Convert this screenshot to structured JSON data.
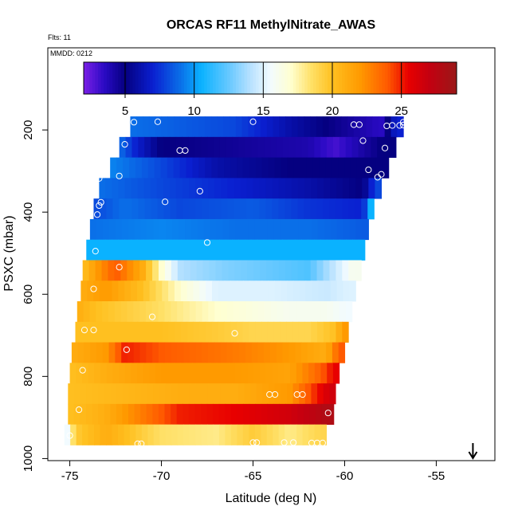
{
  "chart_data": {
    "type": "heatmap",
    "title": "ORCAS RF11 MethylNitrate_AWAS",
    "subtitle_left_1": "Flts: 11",
    "subtitle_left_2": "MMDD: 0212",
    "xlabel": "Latitude (deg N)",
    "ylabel": "PSXC (mbar)",
    "xlim": [
      -76.2,
      -51.8
    ],
    "ylim": [
      1005,
      0
    ],
    "xticks": [
      -75,
      -70,
      -65,
      -60,
      -55
    ],
    "yticks": [
      200,
      400,
      600,
      800,
      1000
    ],
    "colorbar": {
      "range": [
        2,
        29
      ],
      "ticks": [
        5,
        10,
        15,
        20,
        25
      ],
      "stops": [
        [
          2,
          "#7b1fe6"
        ],
        [
          3.5,
          "#2a0ac4"
        ],
        [
          5,
          "#050080"
        ],
        [
          7,
          "#0a1fd0"
        ],
        [
          9,
          "#0a6fe8"
        ],
        [
          10.5,
          "#0ab2ff"
        ],
        [
          12.5,
          "#66c8ff"
        ],
        [
          14,
          "#b4e0ff"
        ],
        [
          15.5,
          "#f2fbff"
        ],
        [
          17,
          "#ffffd0"
        ],
        [
          18.5,
          "#ffe066"
        ],
        [
          20,
          "#ffc020"
        ],
        [
          22,
          "#ff9a00"
        ],
        [
          24,
          "#ff5a00"
        ],
        [
          25.5,
          "#e80000"
        ],
        [
          27,
          "#c40010"
        ],
        [
          29,
          "#9a1818"
        ]
      ]
    },
    "arrow_lat": -53,
    "bands": [
      {
        "p": 192,
        "lat_min": -71.7,
        "lat_max": -56.8,
        "seg": [
          [
            -71.7,
            9
          ],
          [
            -66,
            8
          ],
          [
            -63,
            6
          ],
          [
            -61,
            5
          ],
          [
            -58,
            3.5
          ],
          [
            -57.2,
            7
          ]
        ]
      },
      {
        "p": 242,
        "lat_min": -72.3,
        "lat_max": -57.2,
        "seg": [
          [
            -72.3,
            9
          ],
          [
            -71.4,
            7
          ],
          [
            -70,
            5
          ],
          [
            -62,
            4
          ],
          [
            -60.5,
            3
          ],
          [
            -58,
            5
          ]
        ]
      },
      {
        "p": 292,
        "lat_min": -72.8,
        "lat_max": -57.6,
        "seg": [
          [
            -72.8,
            9.5
          ],
          [
            -70,
            8
          ],
          [
            -67,
            6
          ],
          [
            -63,
            5
          ],
          [
            -58.5,
            5
          ]
        ]
      },
      {
        "p": 342,
        "lat_min": -73.4,
        "lat_max": -58.0,
        "seg": [
          [
            -73.4,
            9
          ],
          [
            -70,
            8
          ],
          [
            -66,
            7
          ],
          [
            -62,
            6
          ],
          [
            -59,
            5
          ],
          [
            -58.3,
            8
          ]
        ]
      },
      {
        "p": 392,
        "lat_min": -73.7,
        "lat_max": -58.4,
        "seg": [
          [
            -73.7,
            8
          ],
          [
            -72,
            9
          ],
          [
            -69,
            8
          ],
          [
            -65,
            8.5
          ],
          [
            -62,
            7.5
          ],
          [
            -59,
            7
          ],
          [
            -58.6,
            10.5
          ]
        ]
      },
      {
        "p": 442,
        "lat_min": -73.9,
        "lat_max": -58.7,
        "seg": [
          [
            -73.9,
            9
          ],
          [
            -70,
            9.5
          ],
          [
            -66,
            9
          ],
          [
            -62,
            9
          ],
          [
            -59,
            8.5
          ]
        ]
      },
      {
        "p": 492,
        "lat_min": -74.1,
        "lat_max": -58.9,
        "seg": [
          [
            -74.1,
            10.5
          ],
          [
            -70,
            10.5
          ],
          [
            -66,
            10.5
          ],
          [
            -62,
            10.5
          ],
          [
            -59,
            10.5
          ]
        ]
      },
      {
        "p": 542,
        "lat_min": -74.3,
        "lat_max": -59.1,
        "seg": [
          [
            -74.3,
            20
          ],
          [
            -73.5,
            22
          ],
          [
            -72.5,
            24
          ],
          [
            -71,
            21
          ],
          [
            -70,
            17
          ],
          [
            -69,
            14
          ],
          [
            -66.5,
            13
          ],
          [
            -64,
            12.5
          ],
          [
            -62,
            12
          ],
          [
            -59.6,
            16
          ]
        ]
      },
      {
        "p": 592,
        "lat_min": -74.4,
        "lat_max": -59.4,
        "seg": [
          [
            -74.4,
            21
          ],
          [
            -73,
            22
          ],
          [
            -71,
            20
          ],
          [
            -69,
            17
          ],
          [
            -67,
            15
          ],
          [
            -64,
            15
          ],
          [
            -61,
            14.5
          ],
          [
            -59.8,
            15
          ]
        ]
      },
      {
        "p": 642,
        "lat_min": -74.6,
        "lat_max": -59.6,
        "seg": [
          [
            -74.6,
            21
          ],
          [
            -73.5,
            20
          ],
          [
            -71,
            19
          ],
          [
            -69,
            18
          ],
          [
            -67,
            17
          ],
          [
            -65,
            16.5
          ],
          [
            -63,
            16
          ],
          [
            -61,
            16
          ],
          [
            -59.9,
            15.5
          ]
        ]
      },
      {
        "p": 692,
        "lat_min": -74.7,
        "lat_max": -59.8,
        "seg": [
          [
            -74.7,
            20
          ],
          [
            -72,
            20
          ],
          [
            -70,
            20
          ],
          [
            -67,
            19.5
          ],
          [
            -65,
            19
          ],
          [
            -62,
            19
          ],
          [
            -60.5,
            20
          ],
          [
            -60.1,
            22
          ]
        ]
      },
      {
        "p": 742,
        "lat_min": -74.9,
        "lat_max": -60.0,
        "seg": [
          [
            -74.9,
            21
          ],
          [
            -73,
            22
          ],
          [
            -72,
            25
          ],
          [
            -70,
            24
          ],
          [
            -66,
            23
          ],
          [
            -63,
            22
          ],
          [
            -61,
            21
          ],
          [
            -60.3,
            24
          ]
        ]
      },
      {
        "p": 792,
        "lat_min": -75.0,
        "lat_max": -60.3,
        "seg": [
          [
            -75.0,
            20
          ],
          [
            -73,
            21
          ],
          [
            -70,
            22
          ],
          [
            -66,
            22
          ],
          [
            -63,
            21.5
          ],
          [
            -61.2,
            24
          ],
          [
            -60.6,
            25.5
          ]
        ]
      },
      {
        "p": 842,
        "lat_min": -75.1,
        "lat_max": -60.5,
        "seg": [
          [
            -75.1,
            20
          ],
          [
            -72,
            20.5
          ],
          [
            -69,
            21
          ],
          [
            -66,
            21
          ],
          [
            -63,
            22
          ],
          [
            -62,
            24
          ],
          [
            -61.3,
            25.5
          ],
          [
            -60.8,
            26.5
          ]
        ]
      },
      {
        "p": 892,
        "lat_min": -75.1,
        "lat_max": -60.6,
        "seg": [
          [
            -75.1,
            20
          ],
          [
            -73,
            21
          ],
          [
            -71,
            23
          ],
          [
            -69,
            25
          ],
          [
            -66,
            25.5
          ],
          [
            -63,
            26.5
          ],
          [
            -61.5,
            27.5
          ],
          [
            -61,
            28
          ]
        ]
      },
      {
        "p": 942,
        "lat_min": -75.3,
        "lat_max": -61.0,
        "seg": [
          [
            -75.3,
            14
          ],
          [
            -74.7,
            19.5
          ],
          [
            -73,
            21
          ],
          [
            -70,
            18.5
          ],
          [
            -67,
            18
          ],
          [
            -65,
            19.5
          ],
          [
            -63,
            18
          ],
          [
            -61.4,
            19
          ]
        ]
      }
    ],
    "points": [
      [
        -71.5,
        181
      ],
      [
        -70.2,
        180
      ],
      [
        -65.0,
        180
      ],
      [
        -59.5,
        187
      ],
      [
        -59.2,
        187
      ],
      [
        -57.7,
        190
      ],
      [
        -57.4,
        189
      ],
      [
        -57.0,
        189
      ],
      [
        -56.8,
        181
      ],
      [
        -56.8,
        188
      ],
      [
        -72.0,
        235
      ],
      [
        -69.0,
        250
      ],
      [
        -68.7,
        250
      ],
      [
        -59.0,
        226
      ],
      [
        -57.8,
        244
      ],
      [
        -72.3,
        312
      ],
      [
        -73.4,
        318
      ],
      [
        -58.7,
        297
      ],
      [
        -58.2,
        315
      ],
      [
        -58.0,
        308
      ],
      [
        -73.8,
        344
      ],
      [
        -73.3,
        376
      ],
      [
        -69.8,
        375
      ],
      [
        -67.9,
        349
      ],
      [
        -73.4,
        384
      ],
      [
        -73.5,
        406
      ],
      [
        -73.6,
        495
      ],
      [
        -67.5,
        474
      ],
      [
        -72.3,
        534
      ],
      [
        -73.7,
        587
      ],
      [
        -70.5,
        655
      ],
      [
        -74.2,
        687
      ],
      [
        -73.7,
        687
      ],
      [
        -66.0,
        695
      ],
      [
        -71.9,
        735
      ],
      [
        -74.3,
        785
      ],
      [
        -63.8,
        844
      ],
      [
        -64.1,
        844
      ],
      [
        -62.3,
        844
      ],
      [
        -62.6,
        844
      ],
      [
        -60.9,
        889
      ],
      [
        -74.5,
        881
      ],
      [
        -75.0,
        944
      ],
      [
        -71.3,
        964
      ],
      [
        -71.1,
        964
      ],
      [
        -64.8,
        961
      ],
      [
        -65.0,
        961
      ],
      [
        -63.3,
        961
      ],
      [
        -62.8,
        961
      ],
      [
        -61.8,
        962
      ],
      [
        -61.5,
        962
      ],
      [
        -61.2,
        962
      ]
    ]
  }
}
